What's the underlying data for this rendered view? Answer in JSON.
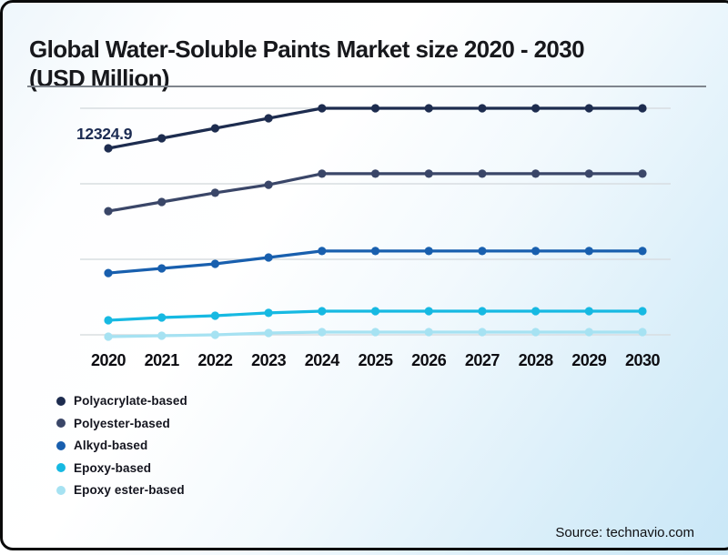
{
  "header": {
    "title": "Global Water-Soluble Paints Market size 2020 - 2030 (USD Million)"
  },
  "footer": {
    "source": "Source: technavio.com"
  },
  "chart_data": {
    "type": "line",
    "title": "Global Water-Soluble Paints Market size 2020 - 2030 (USD Million)",
    "xlabel": "",
    "ylabel": "USD Million",
    "y_axis_visible": false,
    "grid": true,
    "legend_position": "bottom-left",
    "categories": [
      "2020",
      "2021",
      "2022",
      "2023",
      "2024",
      "2025",
      "2026",
      "2027",
      "2028",
      "2029",
      "2030"
    ],
    "series": [
      {
        "name": "Polyacrylate-based",
        "color": "#1d2c4f",
        "values": [
          12324.9,
          12950,
          13575,
          14200,
          14825,
          14825,
          14825,
          14825,
          14825,
          14825,
          14825
        ]
      },
      {
        "name": "Polyester-based",
        "color": "#3a4668",
        "values": [
          8400,
          8975,
          9550,
          10050,
          10740,
          10740,
          10740,
          10740,
          10740,
          10740,
          10740
        ]
      },
      {
        "name": "Alkyd-based",
        "color": "#185fae",
        "values": [
          4540,
          4830,
          5110,
          5510,
          5910,
          5910,
          5910,
          5910,
          5910,
          5910,
          5910
        ]
      },
      {
        "name": "Epoxy-based",
        "color": "#16b9e2",
        "values": [
          1590,
          1760,
          1875,
          2050,
          2160,
          2160,
          2160,
          2160,
          2160,
          2160,
          2160
        ]
      },
      {
        "name": "Epoxy ester-based",
        "color": "#a6e2f2",
        "values": [
          570,
          625,
          680,
          795,
          850,
          850,
          850,
          850,
          850,
          850,
          850
        ]
      }
    ],
    "annotation": {
      "text": "12324.9",
      "series": "Polyacrylate-based",
      "category": "2020"
    }
  }
}
